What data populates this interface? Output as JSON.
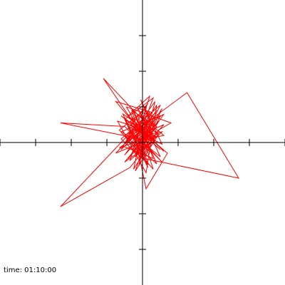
{
  "status": {
    "time_label": "time:",
    "time_value": "01:10:00"
  },
  "colors": {
    "trace": "#ff0000",
    "axes": "#000000",
    "background": "#ffffff"
  },
  "chart_data": {
    "type": "line",
    "title": "",
    "xlabel": "",
    "ylabel": "",
    "xlim": [
      -4,
      4
    ],
    "ylim": [
      -4,
      4
    ],
    "xticks": [
      -4,
      -3,
      -2,
      -1,
      1,
      2,
      3,
      4
    ],
    "yticks": [
      -3,
      -2,
      -1,
      1,
      2,
      3
    ],
    "grid": false,
    "legend": "none",
    "series": [
      {
        "values": [
          [
            -0.45,
            0.55
          ],
          [
            -0.05,
            0.3
          ],
          [
            0.3,
            1.25
          ],
          [
            -0.5,
            0.65
          ],
          [
            -0.1,
            -0.2
          ],
          [
            0.4,
            0.45
          ],
          [
            -0.3,
            0.9
          ],
          [
            0.15,
            -0.6
          ],
          [
            -0.6,
            0.1
          ],
          [
            0.5,
            1.05
          ],
          [
            -0.2,
            -0.35
          ],
          [
            0.25,
            0.85
          ],
          [
            -0.75,
            1.15
          ],
          [
            0.05,
            0.2
          ],
          [
            0.55,
            0.3
          ],
          [
            -0.35,
            -0.5
          ],
          [
            0.2,
            1.3
          ],
          [
            -0.4,
            0.75
          ],
          [
            0.6,
            -0.25
          ],
          [
            -0.1,
            0.5
          ],
          [
            0.3,
            -0.75
          ],
          [
            -0.65,
            0.35
          ],
          [
            0.1,
            0.95
          ],
          [
            -0.25,
            -0.15
          ],
          [
            0.45,
            0.6
          ],
          [
            -0.5,
            -0.55
          ],
          [
            0.35,
            0.05
          ],
          [
            -0.15,
            1.0
          ],
          [
            0.5,
            -0.4
          ],
          [
            -0.3,
            0.25
          ],
          [
            1.25,
            1.4
          ],
          [
            2.7,
            -1.0
          ],
          [
            0.05,
            -0.45
          ],
          [
            -0.55,
            0.8
          ],
          [
            0.4,
            0.15
          ],
          [
            -0.2,
            -0.8
          ],
          [
            0.3,
            0.7
          ],
          [
            -0.6,
            -0.2
          ],
          [
            0.15,
            1.1
          ],
          [
            -0.4,
            0.4
          ],
          [
            0.55,
            -0.55
          ],
          [
            -0.05,
            0.1
          ],
          [
            -2.3,
            0.55
          ],
          [
            -0.5,
            0.45
          ],
          [
            0.25,
            -0.3
          ],
          [
            -0.3,
            0.95
          ],
          [
            0.45,
            0.2
          ],
          [
            -0.75,
            -0.3
          ],
          [
            0.1,
            0.6
          ],
          [
            -0.1,
            -0.65
          ],
          [
            0.35,
            1.15
          ],
          [
            -0.45,
            0.05
          ],
          [
            0.6,
            0.5
          ],
          [
            -0.2,
            -0.4
          ],
          [
            0.2,
            0.85
          ],
          [
            -2.3,
            -1.8
          ],
          [
            -0.35,
            -0.7
          ],
          [
            0.3,
            0.1
          ],
          [
            -0.6,
            0.75
          ],
          [
            0.5,
            -0.2
          ],
          [
            -0.15,
            0.4
          ],
          [
            -1.1,
            1.8
          ],
          [
            -0.25,
            0.9
          ],
          [
            0.4,
            -0.6
          ],
          [
            -0.5,
            0.2
          ],
          [
            0.15,
            0.55
          ],
          [
            -0.05,
            -0.25
          ],
          [
            0.55,
            0.95
          ],
          [
            -0.4,
            -0.45
          ],
          [
            0.25,
            0.3
          ],
          [
            -0.7,
            0.6
          ],
          [
            0.1,
            -0.85
          ],
          [
            0.4,
            1.05
          ],
          [
            -0.3,
            0.0
          ],
          [
            0.6,
            0.2
          ],
          [
            -0.15,
            0.8
          ],
          [
            0.3,
            -0.45
          ],
          [
            -0.55,
            -0.1
          ],
          [
            0.05,
            0.65
          ],
          [
            -0.25,
            -0.75
          ],
          [
            0.45,
            0.35
          ],
          [
            0.8,
            0.55
          ],
          [
            -0.45,
            1.0
          ],
          [
            0.2,
            -0.15
          ],
          [
            -0.6,
            0.3
          ],
          [
            0.5,
            0.75
          ],
          [
            -0.1,
            -0.5
          ],
          [
            0.35,
            0.05
          ],
          [
            -0.35,
            0.6
          ],
          [
            0.7,
            -0.3
          ],
          [
            0.1,
            -1.3
          ],
          [
            -0.2,
            0.15
          ],
          [
            0.4,
            0.9
          ],
          [
            -0.5,
            -0.35
          ],
          [
            0.25,
            0.5
          ],
          [
            -0.05,
            1.2
          ],
          [
            0.55,
            -0.05
          ],
          [
            -0.4,
            0.45
          ],
          [
            0.15,
            -0.7
          ],
          [
            -0.3,
            0.7
          ],
          [
            0.45,
            0.25
          ],
          [
            -0.65,
            -0.15
          ],
          [
            0.3,
            0.55
          ],
          [
            -0.15,
            -0.3
          ],
          [
            0.6,
            0.8
          ],
          [
            -0.45,
            0.1
          ]
        ]
      }
    ]
  }
}
